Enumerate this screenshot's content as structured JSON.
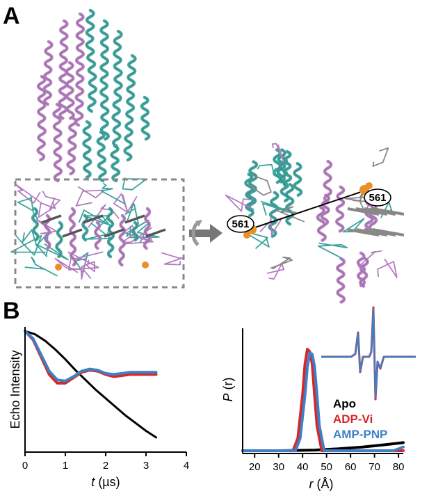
{
  "panel_labels": {
    "a": "A",
    "b": "B"
  },
  "residue_labels": {
    "left": "561",
    "right": "561"
  },
  "colors": {
    "chain_a": "#b47cc0",
    "chain_b": "#3aa39e",
    "spin_label": "#e8902a",
    "apo": "#000000",
    "adp_vi": "#d62728",
    "amp_pnp": "#3f7fc4"
  },
  "chart_data": [
    {
      "type": "line",
      "title": "",
      "xlabel": "t (µs)",
      "xlabel_var": "t",
      "xlabel_unit": " (µs)",
      "ylabel": "Echo Intensity",
      "xlim": [
        0,
        4
      ],
      "x_ticks": [
        "0",
        "1",
        "2",
        "3",
        "4"
      ],
      "ylim": [
        0,
        1
      ],
      "series": [
        {
          "name": "Apo",
          "color": "#000000",
          "x": [
            0,
            0.25,
            0.5,
            0.75,
            1.0,
            1.25,
            1.5,
            1.75,
            2.0,
            2.25,
            2.5,
            2.75,
            3.0,
            3.25
          ],
          "y": [
            1.0,
            0.97,
            0.91,
            0.83,
            0.74,
            0.64,
            0.55,
            0.46,
            0.38,
            0.3,
            0.22,
            0.15,
            0.08,
            0.02
          ]
        },
        {
          "name": "ADP-Vi",
          "color": "#d62728",
          "x": [
            0,
            0.2,
            0.4,
            0.6,
            0.8,
            1.0,
            1.2,
            1.4,
            1.6,
            1.8,
            2.0,
            2.2,
            2.4,
            2.6,
            2.8,
            3.0,
            3.25
          ],
          "y": [
            1.0,
            0.92,
            0.76,
            0.6,
            0.52,
            0.52,
            0.57,
            0.62,
            0.64,
            0.63,
            0.6,
            0.58,
            0.59,
            0.6,
            0.6,
            0.6,
            0.6
          ]
        },
        {
          "name": "AMP-PNP",
          "color": "#3f7fc4",
          "x": [
            0,
            0.2,
            0.4,
            0.6,
            0.8,
            1.0,
            1.2,
            1.4,
            1.6,
            1.8,
            2.0,
            2.2,
            2.4,
            2.6,
            2.8,
            3.0,
            3.25
          ],
          "y": [
            1.0,
            0.93,
            0.78,
            0.63,
            0.55,
            0.54,
            0.58,
            0.63,
            0.65,
            0.64,
            0.61,
            0.6,
            0.61,
            0.62,
            0.62,
            0.62,
            0.62
          ]
        }
      ]
    },
    {
      "type": "line",
      "title": "",
      "xlabel": "r (Å)",
      "xlabel_var": "r",
      "xlabel_unit": " (Å)",
      "ylabel": "P (r)",
      "ylabel_var": "P",
      "ylabel_unit": " (r)",
      "xlim": [
        15,
        82
      ],
      "x_ticks": [
        "20",
        "30",
        "40",
        "50",
        "60",
        "70",
        "80"
      ],
      "ylim": [
        0,
        1
      ],
      "legend_placement": "lower-right",
      "series": [
        {
          "name": "Apo",
          "color": "#000000",
          "x": [
            15,
            30,
            45,
            55,
            65,
            75,
            82
          ],
          "y": [
            0.0,
            0.0,
            0.005,
            0.015,
            0.03,
            0.05,
            0.065
          ]
        },
        {
          "name": "ADP-Vi",
          "color": "#d62728",
          "x": [
            15,
            36,
            38,
            40,
            41,
            42,
            43,
            44,
            45,
            46,
            48,
            82
          ],
          "y": [
            0.0,
            0.0,
            0.1,
            0.45,
            0.7,
            0.82,
            0.8,
            0.7,
            0.45,
            0.2,
            0.0,
            0.0
          ]
        },
        {
          "name": "AMP-PNP",
          "color": "#3f7fc4",
          "x": [
            15,
            37,
            39,
            41,
            42,
            43,
            44,
            45,
            46,
            47,
            49,
            78,
            82
          ],
          "y": [
            0.0,
            0.0,
            0.1,
            0.45,
            0.68,
            0.79,
            0.78,
            0.68,
            0.45,
            0.2,
            0.0,
            0.0,
            0.03
          ]
        }
      ]
    }
  ]
}
